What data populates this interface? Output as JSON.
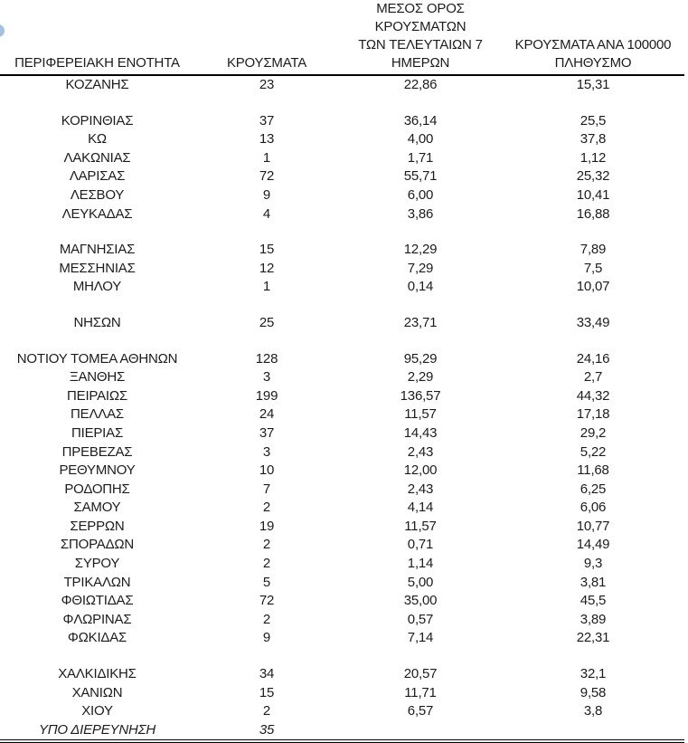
{
  "page": {
    "background": "#ffffff",
    "text_color": "#1c1c1c"
  },
  "logo_fragment": {
    "description": "partial-blue-circle-logo-clipped-at-left-edge",
    "color": "#86aed1"
  },
  "table": {
    "headers": {
      "col1": "ΠΕΡΙΦΕΡΕΙΑΚΗ ΕΝΟΤΗΤΑ",
      "col2": "ΚΡΟΥΣΜΑΤΑ",
      "col3": "ΜΕΣΟΣ ΟΡΟΣ ΚΡΟΥΣΜΑΤΩΝ\nΤΩΝ ΤΕΛΕΥΤΑΙΩΝ 7\nΗΜΕΡΩΝ",
      "col4": "ΚΡΟΥΣΜΑΤΑ ΑΝΑ 100000\nΠΛΗΘΥΣΜΟ"
    },
    "rows": [
      {
        "name": "ΚΟΖΑΝΗΣ",
        "cases": "23",
        "avg7": "22,86",
        "per100k": "15,31"
      },
      {
        "spacer": true
      },
      {
        "name": "ΚΟΡΙΝΘΙΑΣ",
        "cases": "37",
        "avg7": "36,14",
        "per100k": "25,5"
      },
      {
        "name": "ΚΩ",
        "cases": "13",
        "avg7": "4,00",
        "per100k": "37,8"
      },
      {
        "name": "ΛΑΚΩΝΙΑΣ",
        "cases": "1",
        "avg7": "1,71",
        "per100k": "1,12"
      },
      {
        "name": "ΛΑΡΙΣΑΣ",
        "cases": "72",
        "avg7": "55,71",
        "per100k": "25,32"
      },
      {
        "name": "ΛΕΣΒΟΥ",
        "cases": "9",
        "avg7": "6,00",
        "per100k": "10,41"
      },
      {
        "name": "ΛΕΥΚΑΔΑΣ",
        "cases": "4",
        "avg7": "3,86",
        "per100k": "16,88"
      },
      {
        "spacer": true
      },
      {
        "name": "ΜΑΓΝΗΣΙΑΣ",
        "cases": "15",
        "avg7": "12,29",
        "per100k": "7,89"
      },
      {
        "name": "ΜΕΣΣΗΝΙΑΣ",
        "cases": "12",
        "avg7": "7,29",
        "per100k": "7,5"
      },
      {
        "name": "ΜΗΛΟΥ",
        "cases": "1",
        "avg7": "0,14",
        "per100k": "10,07"
      },
      {
        "spacer": true
      },
      {
        "name": "ΝΗΣΩΝ",
        "cases": "25",
        "avg7": "23,71",
        "per100k": "33,49"
      },
      {
        "spacer": true
      },
      {
        "name": "ΝΟΤΙΟΥ ΤΟΜΕΑ ΑΘΗΝΩΝ",
        "cases": "128",
        "avg7": "95,29",
        "per100k": "24,16"
      },
      {
        "name": "ΞΑΝΘΗΣ",
        "cases": "3",
        "avg7": "2,29",
        "per100k": "2,7"
      },
      {
        "name": "ΠΕΙΡΑΙΩΣ",
        "cases": "199",
        "avg7": "136,57",
        "per100k": "44,32"
      },
      {
        "name": "ΠΕΛΛΑΣ",
        "cases": "24",
        "avg7": "11,57",
        "per100k": "17,18"
      },
      {
        "name": "ΠΙΕΡΙΑΣ",
        "cases": "37",
        "avg7": "14,43",
        "per100k": "29,2"
      },
      {
        "name": "ΠΡΕΒΕΖΑΣ",
        "cases": "3",
        "avg7": "2,43",
        "per100k": "5,22"
      },
      {
        "name": "ΡΕΘΥΜΝΟΥ",
        "cases": "10",
        "avg7": "12,00",
        "per100k": "11,68"
      },
      {
        "name": "ΡΟΔΟΠΗΣ",
        "cases": "7",
        "avg7": "2,43",
        "per100k": "6,25"
      },
      {
        "name": "ΣΑΜΟΥ",
        "cases": "2",
        "avg7": "4,14",
        "per100k": "6,06"
      },
      {
        "name": "ΣΕΡΡΩΝ",
        "cases": "19",
        "avg7": "11,57",
        "per100k": "10,77"
      },
      {
        "name": "ΣΠΟΡΑΔΩΝ",
        "cases": "2",
        "avg7": "0,71",
        "per100k": "14,49"
      },
      {
        "name": "ΣΥΡΟΥ",
        "cases": "2",
        "avg7": "1,14",
        "per100k": "9,3"
      },
      {
        "name": "ΤΡΙΚΑΛΩΝ",
        "cases": "5",
        "avg7": "5,00",
        "per100k": "3,81"
      },
      {
        "name": "ΦΘΙΩΤΙΔΑΣ",
        "cases": "72",
        "avg7": "35,00",
        "per100k": "45,5"
      },
      {
        "name": "ΦΛΩΡΙΝΑΣ",
        "cases": "2",
        "avg7": "0,57",
        "per100k": "3,89"
      },
      {
        "name": "ΦΩΚΙΔΑΣ",
        "cases": "9",
        "avg7": "7,14",
        "per100k": "22,31"
      },
      {
        "spacer": true
      },
      {
        "name": "ΧΑΛΚΙΔΙΚΗΣ",
        "cases": "34",
        "avg7": "20,57",
        "per100k": "32,1"
      },
      {
        "name": "ΧΑΝΙΩΝ",
        "cases": "15",
        "avg7": "11,71",
        "per100k": "9,58"
      },
      {
        "name": "ΧΙΟΥ",
        "cases": "2",
        "avg7": "6,57",
        "per100k": "3,8"
      },
      {
        "name": "ΥΠΟ ΔΙΕΡΕΥΝΗΣΗ",
        "cases": "35",
        "avg7": "",
        "per100k": "",
        "italic": true
      }
    ]
  },
  "chart_data": {
    "type": "table",
    "title": "",
    "columns": [
      "ΠΕΡΙΦΕΡΕΙΑΚΗ ΕΝΟΤΗΤΑ",
      "ΚΡΟΥΣΜΑΤΑ",
      "ΜΕΣΟΣ ΟΡΟΣ ΚΡΟΥΣΜΑΤΩΝ ΤΩΝ ΤΕΛΕΥΤΑΙΩΝ 7 ΗΜΕΡΩΝ",
      "ΚΡΟΥΣΜΑΤΑ ΑΝΑ 100000 ΠΛΗΘΥΣΜΟ"
    ],
    "rows": [
      [
        "ΚΟΖΑΝΗΣ",
        "23",
        "22,86",
        "15,31"
      ],
      [
        "ΚΟΡΙΝΘΙΑΣ",
        "37",
        "36,14",
        "25,5"
      ],
      [
        "ΚΩ",
        "13",
        "4,00",
        "37,8"
      ],
      [
        "ΛΑΚΩΝΙΑΣ",
        "1",
        "1,71",
        "1,12"
      ],
      [
        "ΛΑΡΙΣΑΣ",
        "72",
        "55,71",
        "25,32"
      ],
      [
        "ΛΕΣΒΟΥ",
        "9",
        "6,00",
        "10,41"
      ],
      [
        "ΛΕΥΚΑΔΑΣ",
        "4",
        "3,86",
        "16,88"
      ],
      [
        "ΜΑΓΝΗΣΙΑΣ",
        "15",
        "12,29",
        "7,89"
      ],
      [
        "ΜΕΣΣΗΝΙΑΣ",
        "12",
        "7,29",
        "7,5"
      ],
      [
        "ΜΗΛΟΥ",
        "1",
        "0,14",
        "10,07"
      ],
      [
        "ΝΗΣΩΝ",
        "25",
        "23,71",
        "33,49"
      ],
      [
        "ΝΟΤΙΟΥ ΤΟΜΕΑ ΑΘΗΝΩΝ",
        "128",
        "95,29",
        "24,16"
      ],
      [
        "ΞΑΝΘΗΣ",
        "3",
        "2,29",
        "2,7"
      ],
      [
        "ΠΕΙΡΑΙΩΣ",
        "199",
        "136,57",
        "44,32"
      ],
      [
        "ΠΕΛΛΑΣ",
        "24",
        "11,57",
        "17,18"
      ],
      [
        "ΠΙΕΡΙΑΣ",
        "37",
        "14,43",
        "29,2"
      ],
      [
        "ΠΡΕΒΕΖΑΣ",
        "3",
        "2,43",
        "5,22"
      ],
      [
        "ΡΕΘΥΜΝΟΥ",
        "10",
        "12,00",
        "11,68"
      ],
      [
        "ΡΟΔΟΠΗΣ",
        "7",
        "2,43",
        "6,25"
      ],
      [
        "ΣΑΜΟΥ",
        "2",
        "4,14",
        "6,06"
      ],
      [
        "ΣΕΡΡΩΝ",
        "19",
        "11,57",
        "10,77"
      ],
      [
        "ΣΠΟΡΑΔΩΝ",
        "2",
        "0,71",
        "14,49"
      ],
      [
        "ΣΥΡΟΥ",
        "2",
        "1,14",
        "9,3"
      ],
      [
        "ΤΡΙΚΑΛΩΝ",
        "5",
        "5,00",
        "3,81"
      ],
      [
        "ΦΘΙΩΤΙΔΑΣ",
        "72",
        "35,00",
        "45,5"
      ],
      [
        "ΦΛΩΡΙΝΑΣ",
        "2",
        "0,57",
        "3,89"
      ],
      [
        "ΦΩΚΙΔΑΣ",
        "9",
        "7,14",
        "22,31"
      ],
      [
        "ΧΑΛΚΙΔΙΚΗΣ",
        "34",
        "20,57",
        "32,1"
      ],
      [
        "ΧΑΝΙΩΝ",
        "15",
        "11,71",
        "9,58"
      ],
      [
        "ΧΙΟΥ",
        "2",
        "6,57",
        "3,8"
      ],
      [
        "ΥΠΟ ΔΙΕΡΕΥΝΗΣΗ",
        "35",
        "",
        ""
      ]
    ]
  }
}
